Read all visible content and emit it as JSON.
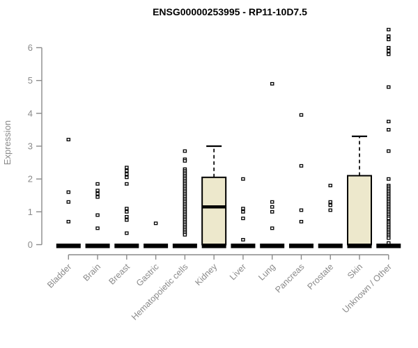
{
  "chart_data": {
    "type": "boxplot",
    "title": "ENSG00000253995 - RP11-10D7.5",
    "xlabel": "",
    "ylabel": "Expression",
    "ylim": [
      0,
      6.6
    ],
    "y_ticks": [
      0,
      1,
      2,
      3,
      4,
      5,
      6
    ],
    "grid": false,
    "legend": "none",
    "categories": [
      "Bladder",
      "Brain",
      "Breast",
      "Gastric",
      "Hematopoietic cells",
      "Kidney",
      "Liver",
      "Lung",
      "Pancreas",
      "Prostate",
      "Skin",
      "Unknown / Other"
    ],
    "colors": {
      "title": "#000000",
      "axis": "#8a8a8a",
      "text": "#8a8a8a",
      "box_fill": "#ede8cc",
      "data": "#000000",
      "background": "#ffffff"
    },
    "groups": [
      {
        "name": "Bladder",
        "zero_bar": true,
        "box": null,
        "points": [
          3.2,
          1.6,
          1.3,
          0.7
        ]
      },
      {
        "name": "Brain",
        "zero_bar": true,
        "box": null,
        "points": [
          1.85,
          1.65,
          1.55,
          1.45,
          0.9,
          0.5
        ]
      },
      {
        "name": "Breast",
        "zero_bar": true,
        "box": null,
        "points": [
          2.35,
          2.25,
          2.15,
          2.05,
          1.85,
          1.1,
          1.0,
          0.85,
          0.75,
          0.35
        ]
      },
      {
        "name": "Gastric",
        "zero_bar": true,
        "box": null,
        "points": [
          0.65
        ]
      },
      {
        "name": "Hematopoietic cells",
        "zero_bar": true,
        "box": null,
        "points": [
          2.85,
          2.6,
          2.55,
          2.3,
          2.25,
          2.2,
          2.15,
          2.1,
          2.05,
          2.0,
          1.95,
          1.9,
          1.85,
          1.8,
          1.75,
          1.7,
          1.65,
          1.6,
          1.55,
          1.5,
          1.45,
          1.4,
          1.35,
          1.3,
          1.25,
          1.2,
          1.15,
          1.1,
          1.05,
          1.0,
          0.95,
          0.9,
          0.85,
          0.8,
          0.75,
          0.7,
          0.65,
          0.6,
          0.55,
          0.5,
          0.45,
          0.4,
          0.35,
          0.3
        ]
      },
      {
        "name": "Kidney",
        "zero_bar": true,
        "box": {
          "q1": 0,
          "median": 1.15,
          "q3": 2.05,
          "whisker_high": 3.0
        },
        "points": []
      },
      {
        "name": "Liver",
        "zero_bar": true,
        "box": null,
        "points": [
          2.0,
          1.1,
          1.0,
          0.8,
          0.15
        ]
      },
      {
        "name": "Lung",
        "zero_bar": true,
        "box": null,
        "points": [
          4.9,
          1.3,
          1.15,
          1.0,
          0.5
        ]
      },
      {
        "name": "Pancreas",
        "zero_bar": true,
        "box": null,
        "points": [
          3.95,
          2.4,
          1.05,
          0.7
        ]
      },
      {
        "name": "Prostate",
        "zero_bar": true,
        "box": null,
        "points": [
          1.8,
          1.3,
          1.2,
          1.05
        ]
      },
      {
        "name": "Skin",
        "zero_bar": true,
        "box": {
          "q1": 0,
          "median": 0,
          "q3": 2.1,
          "whisker_high": 3.3
        },
        "points": []
      },
      {
        "name": "Unknown / Other",
        "zero_bar": true,
        "box": null,
        "points": [
          6.55,
          6.35,
          6.25,
          6.0,
          5.9,
          5.8,
          4.8,
          3.75,
          3.5,
          2.85,
          2.0,
          1.8,
          1.75,
          1.7,
          1.65,
          1.6,
          1.55,
          1.5,
          1.45,
          1.4,
          1.35,
          1.3,
          1.25,
          1.2,
          1.15,
          1.1,
          1.05,
          1.0,
          0.95,
          0.9,
          0.85,
          0.8,
          0.7,
          0.65,
          0.6,
          0.55,
          0.5,
          0.45,
          0.4,
          0.35,
          0.3,
          0.25,
          0.2,
          0.05
        ]
      }
    ]
  }
}
